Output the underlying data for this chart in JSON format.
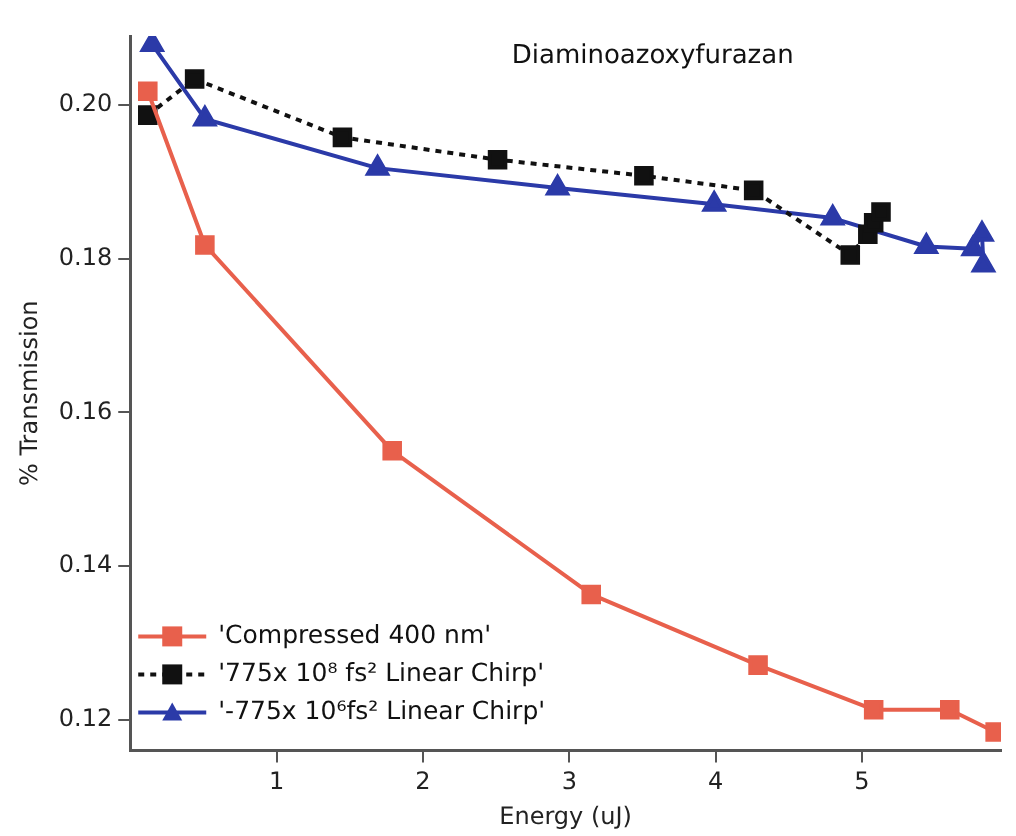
{
  "chart_data": {
    "type": "line",
    "title": "Diaminoazoxyfurazan",
    "xlabel": "Energy (uJ)",
    "ylabel": "% Transmission",
    "xlim": [
      0,
      5.95
    ],
    "xticks": [
      1,
      2,
      3,
      4,
      5
    ],
    "ylim": [
      0.116,
      0.209
    ],
    "yticks": [
      0.12,
      0.14,
      0.16,
      0.18,
      {
        "value": 0.2,
        "label": "0.20"
      }
    ],
    "grid": false,
    "legend": "bottom left",
    "series": [
      {
        "name": "'Compressed 400 nm'",
        "color": "#e8604c",
        "marker": "square",
        "line_style": "solid",
        "x": [
          0.12,
          0.51,
          1.79,
          3.15,
          4.29,
          5.08,
          5.6,
          5.91
        ],
        "values": [
          0.2018,
          0.1818,
          0.155,
          0.1363,
          0.1271,
          0.1213,
          0.1213,
          0.1184
        ]
      },
      {
        "name": "'775x 10⁸ fs² Linear Chirp'",
        "color": "#111111",
        "marker": "square",
        "line_style": "dotted",
        "x": [
          0.12,
          0.44,
          1.45,
          2.51,
          3.51,
          4.26,
          4.92,
          5.04,
          5.08,
          5.13
        ],
        "values": [
          0.1987,
          0.2034,
          0.1958,
          0.1929,
          0.1908,
          0.1889,
          0.1805,
          0.1832,
          0.1847,
          0.1861
        ]
      },
      {
        "name": "'-775x 10⁶fs² Linear Chirp'",
        "color": "#2b3aa8",
        "marker": "triangle",
        "line_style": "solid",
        "x": [
          0.15,
          0.51,
          1.69,
          2.92,
          3.99,
          4.8,
          5.44,
          5.76,
          5.82,
          5.83
        ],
        "values": [
          0.2079,
          0.1982,
          0.1918,
          0.1892,
          0.1871,
          0.1853,
          0.1816,
          0.1813,
          0.1832,
          0.1792
        ]
      }
    ]
  }
}
